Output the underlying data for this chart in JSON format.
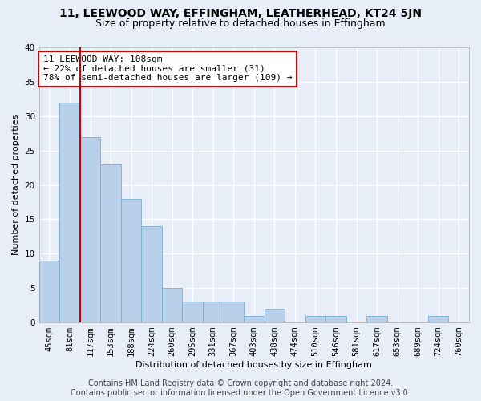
{
  "title1": "11, LEEWOOD WAY, EFFINGHAM, LEATHERHEAD, KT24 5JN",
  "title2": "Size of property relative to detached houses in Effingham",
  "xlabel": "Distribution of detached houses by size in Effingham",
  "ylabel": "Number of detached properties",
  "categories": [
    "45sqm",
    "81sqm",
    "117sqm",
    "153sqm",
    "188sqm",
    "224sqm",
    "260sqm",
    "295sqm",
    "331sqm",
    "367sqm",
    "403sqm",
    "438sqm",
    "474sqm",
    "510sqm",
    "546sqm",
    "581sqm",
    "617sqm",
    "653sqm",
    "689sqm",
    "724sqm",
    "760sqm"
  ],
  "values": [
    9,
    32,
    27,
    23,
    18,
    14,
    5,
    3,
    3,
    3,
    1,
    2,
    0,
    1,
    1,
    0,
    1,
    0,
    0,
    1,
    0
  ],
  "bar_color": "#b8d0ea",
  "bar_edge_color": "#7aafd4",
  "annotation_line1": "11 LEEWOOD WAY: 108sqm",
  "annotation_line2": "← 22% of detached houses are smaller (31)",
  "annotation_line3": "78% of semi-detached houses are larger (109) →",
  "annotation_box_color": "#ffffff",
  "annotation_box_edge_color": "#cc0000",
  "red_line_color": "#cc0000",
  "ylim": [
    0,
    40
  ],
  "yticks": [
    0,
    5,
    10,
    15,
    20,
    25,
    30,
    35,
    40
  ],
  "footer1": "Contains HM Land Registry data © Crown copyright and database right 2024.",
  "footer2": "Contains public sector information licensed under the Open Government Licence v3.0.",
  "bg_color": "#e8eef8",
  "plot_bg_color": "#e8eef8",
  "grid_color": "#ffffff",
  "title_fontsize": 10,
  "subtitle_fontsize": 9,
  "axis_label_fontsize": 8,
  "tick_fontsize": 7.5,
  "annotation_fontsize": 8,
  "footer_fontsize": 7
}
